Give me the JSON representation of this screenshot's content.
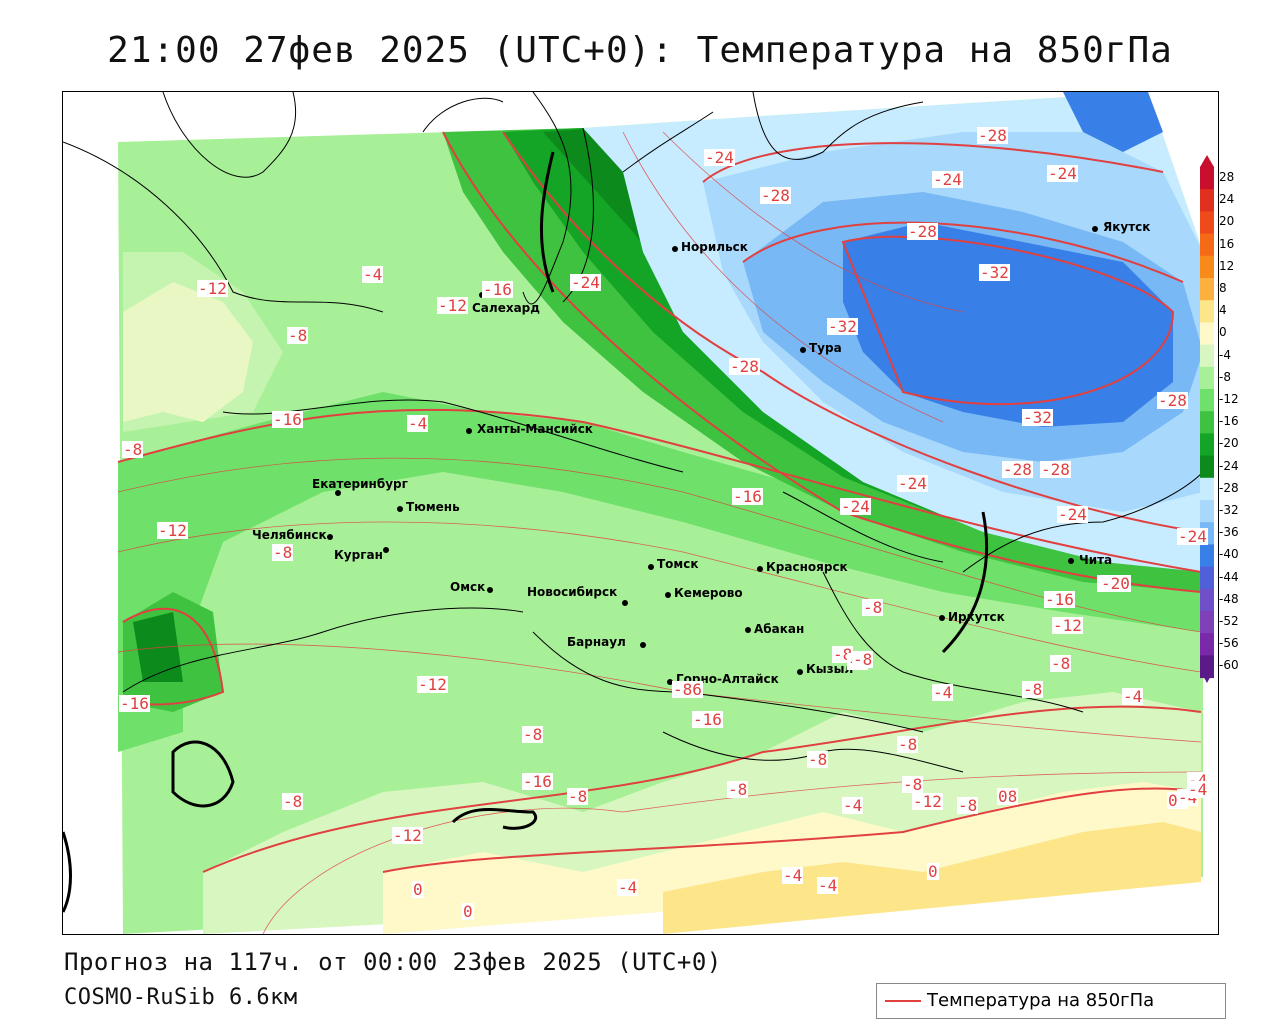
{
  "title": "21:00 27фев 2025 (UTC+0): Температура на 850гПа",
  "forecast_info": "Прогноз на 117ч. от 00:00 23фев 2025 (UTC+0)",
  "model_info": "COSMO-RuSib 6.6км",
  "legend": {
    "label": "Температура на 850гПа",
    "line_color": "#e04040"
  },
  "colorbar": {
    "labels": [
      "28",
      "24",
      "20",
      "16",
      "12",
      "8",
      "4",
      "0",
      "-4",
      "-8",
      "-12",
      "-16",
      "-20",
      "-24",
      "-28",
      "-32",
      "-36",
      "-40",
      "-44",
      "-48",
      "-52",
      "-56",
      "-60"
    ],
    "colors": [
      "#c8102e",
      "#e0301e",
      "#ef4a1c",
      "#f56a16",
      "#f88a1a",
      "#fbb040",
      "#fde58a",
      "#fff8c8",
      "#d8f7c0",
      "#a8f098",
      "#6fe06a",
      "#3fc240",
      "#14a426",
      "#0d8a1c",
      "#c8ecff",
      "#a8d8fb",
      "#78b8f4",
      "#3880e8",
      "#5060d8",
      "#7050c8",
      "#8040b8",
      "#7a2aa8",
      "#5a1a88"
    ]
  },
  "cities": [
    {
      "name": "Якутск"
    },
    {
      "name": "Норильск"
    },
    {
      "name": "Салехард"
    },
    {
      "name": "Тура"
    },
    {
      "name": "Ханты-Мансийск"
    },
    {
      "name": "Екатеринбург"
    },
    {
      "name": "Тюмень"
    },
    {
      "name": "Челябинск"
    },
    {
      "name": "Курган"
    },
    {
      "name": "Омск"
    },
    {
      "name": "Новосибирск"
    },
    {
      "name": "Томск"
    },
    {
      "name": "Кемерово"
    },
    {
      "name": "Красноярск"
    },
    {
      "name": "Барнаул"
    },
    {
      "name": "Абакан"
    },
    {
      "name": "Иркутск"
    },
    {
      "name": "Чита"
    },
    {
      "name": "Горно-Алтайск"
    },
    {
      "name": "Кызыл"
    }
  ],
  "isolines": [
    "-28",
    "-24",
    "-24",
    "-28",
    "-24",
    "-28",
    "-32",
    "-32",
    "-28",
    "-32",
    "-28",
    "-24",
    "-24",
    "-28",
    "-28",
    "-24",
    "-24",
    "-24",
    "-20",
    "-16",
    "-20",
    "-16",
    "-12",
    "-16",
    "-12",
    "-8",
    "-4",
    "-4",
    "-8",
    "-8",
    "-12",
    "-8",
    "-16",
    "-12",
    "-16",
    "-16",
    "-8",
    "-16",
    "-8",
    "-8",
    "-8",
    "-8",
    "-8",
    "-8",
    "-8",
    "-8",
    "-12",
    "-8",
    "-8",
    "-4",
    "-8",
    "-4",
    "-8",
    "-4",
    "-8",
    "-4",
    "-4",
    "-12",
    "-4",
    "-4",
    "0",
    "0",
    "-4",
    "0",
    "-4",
    "-4",
    "0",
    "0",
    "-4",
    "-8",
    "-20",
    "-12",
    "-16",
    "-8"
  ]
}
